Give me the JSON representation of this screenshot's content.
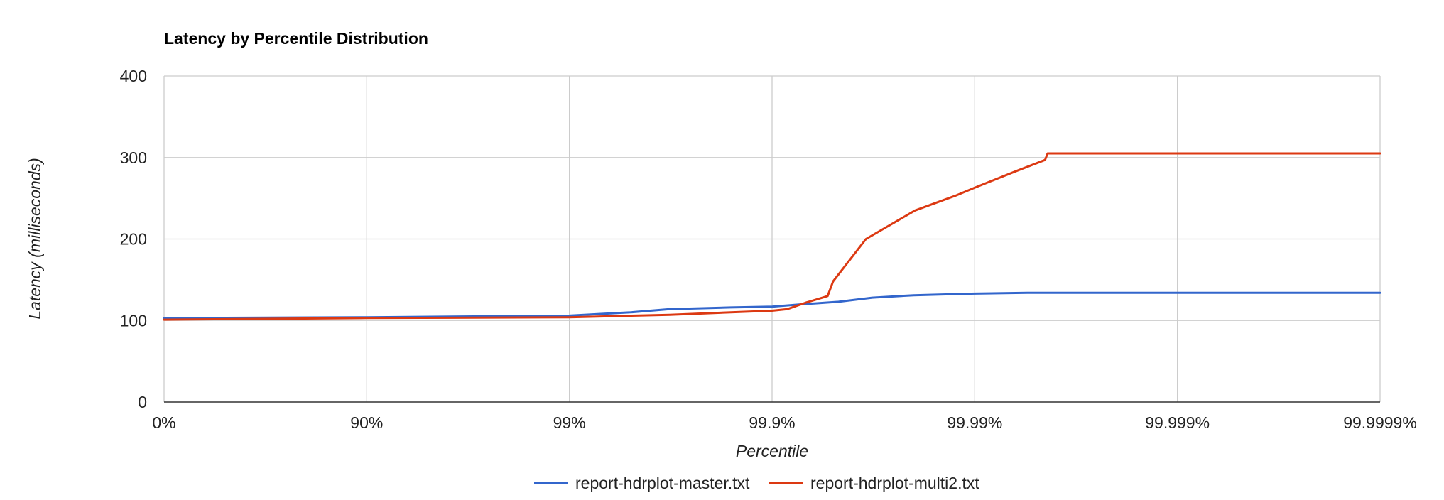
{
  "chart_data": {
    "type": "line",
    "title": "Latency by Percentile Distribution",
    "xlabel": "Percentile",
    "ylabel": "Latency (milliseconds)",
    "x_scale": "log-nines",
    "x_ticks": [
      "0%",
      "90%",
      "99%",
      "99.9%",
      "99.99%",
      "99.999%",
      "99.9999%"
    ],
    "ylim": [
      0,
      400
    ],
    "y_ticks": [
      "0",
      "100",
      "200",
      "300",
      "400"
    ],
    "grid": true,
    "legend_position": "bottom",
    "series": [
      {
        "name": "report-hdrplot-master.txt",
        "color": "#3366cc",
        "x": [
          "0%",
          "90%",
          "99%",
          "99.5%",
          "99.68%",
          "99.84%",
          "99.9%",
          "99.93%",
          "99.953%",
          "99.968%",
          "99.98%",
          "99.99%",
          "99.9945%",
          "99.99563%",
          "99.9999%"
        ],
        "y": [
          103,
          104,
          106,
          110,
          114,
          116,
          117,
          120,
          123,
          128,
          131,
          133,
          134,
          134,
          134
        ]
      },
      {
        "name": "report-hdrplot-multi2.txt",
        "color": "#dc3912",
        "x": [
          "0%",
          "90%",
          "99%",
          "99.68%",
          "99.84%",
          "99.9%",
          "99.916%",
          "99.932%",
          "99.9436%",
          "99.9468%",
          "99.95%",
          "99.9656%",
          "99.9803%",
          "99.9875%",
          "99.99%",
          "99.9937%",
          "99.9955%",
          "99.99563%",
          "99.9999%"
        ],
        "y": [
          101,
          103,
          104,
          107,
          110,
          112,
          114,
          122,
          128,
          130,
          148,
          200,
          235,
          253,
          263,
          283,
          297,
          305,
          305
        ]
      }
    ]
  }
}
